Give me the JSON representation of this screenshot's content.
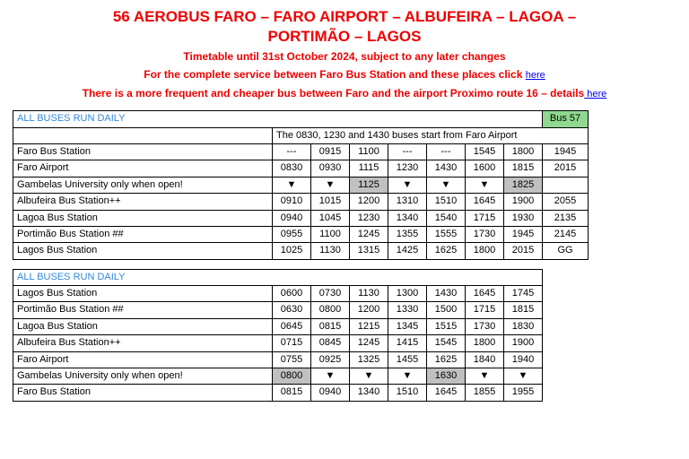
{
  "header": {
    "title_line1": "56 AEROBUS FARO – FARO AIRPORT – ALBUFEIRA – LAGOA –",
    "title_line2": "PORTIMÃO – LAGOS",
    "sub1": "Timetable until 31st October 2024, subject to any later changes",
    "sub2_a": "For the complete service between Faro Bus Station and these places click ",
    "sub2_link": "here",
    "sub3_a": "There is a more frequent and cheaper bus between Faro and the airport Proximo route 16 – details",
    "sub3_link": " here"
  },
  "outbound": {
    "section_label": "ALL BUSES RUN DAILY",
    "bus57": "Bus 57",
    "note": "The 0830, 1230 and 1430 buses start from Faro Airport",
    "stops": [
      "Faro Bus Station",
      "Faro Airport",
      "Gambelas University only when open!",
      "Albufeira Bus Station++",
      "Lagoa Bus Station",
      "Portimão Bus Station ##",
      "Lagos Bus Station"
    ],
    "cols": [
      [
        "---",
        "0830",
        "▼",
        "0910",
        "0940",
        "0955",
        "1025"
      ],
      [
        "0915",
        "0930",
        "▼",
        "1015",
        "1045",
        "1100",
        "1130"
      ],
      [
        "1100",
        "1115",
        "1125",
        "1200",
        "1230",
        "1245",
        "1315"
      ],
      [
        "---",
        "1230",
        "▼",
        "1310",
        "1340",
        "1355",
        "1425"
      ],
      [
        "---",
        "1430",
        "▼",
        "1510",
        "1540",
        "1555",
        "1625"
      ],
      [
        "1545",
        "1600",
        "▼",
        "1645",
        "1715",
        "1730",
        "1800"
      ],
      [
        "1800",
        "1815",
        "1825",
        "1900",
        "1930",
        "1945",
        "2015"
      ],
      [
        "1945",
        "2015",
        "",
        "2055",
        "2135",
        "2145",
        "GG"
      ]
    ],
    "shaded": {
      "2": {
        "2": true
      },
      "6": {
        "2": true
      }
    }
  },
  "inbound": {
    "section_label": "ALL BUSES RUN DAILY",
    "stops": [
      "Lagos Bus Station",
      "Portimão Bus Station ##",
      "Lagoa Bus Station",
      "Albufeira Bus Station++",
      "Faro Airport",
      "Gambelas University only when open!",
      "Faro Bus Station"
    ],
    "cols": [
      [
        "0600",
        "0630",
        "0645",
        "0715",
        "0755",
        "0800",
        "0815"
      ],
      [
        "0730",
        "0800",
        "0815",
        "0845",
        "0925",
        "▼",
        "0940"
      ],
      [
        "1130",
        "1200",
        "1215",
        "1245",
        "1325",
        "▼",
        "1340"
      ],
      [
        "1300",
        "1330",
        "1345",
        "1415",
        "1455",
        "▼",
        "1510"
      ],
      [
        "1430",
        "1500",
        "1515",
        "1545",
        "1625",
        "1630",
        "1645"
      ],
      [
        "1645",
        "1715",
        "1730",
        "1800",
        "1840",
        "▼",
        "1855"
      ],
      [
        "1745",
        "1815",
        "1830",
        "1900",
        "1940",
        "▼",
        "1955"
      ]
    ],
    "shaded": {
      "0": {
        "5": true
      },
      "4": {
        "5": true
      }
    }
  }
}
